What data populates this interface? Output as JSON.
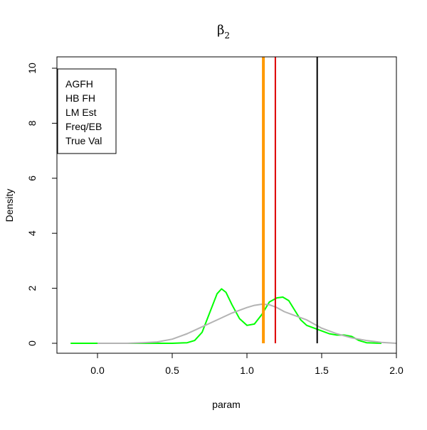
{
  "chart_data": {
    "type": "line",
    "title": "β",
    "title_subscript": "2",
    "xlabel": "param",
    "ylabel": "Density",
    "xlim": [
      -0.2,
      2.0
    ],
    "ylim": [
      -0.4,
      10.0
    ],
    "x_ticks": [
      0.0,
      0.5,
      1.0,
      1.5,
      2.0
    ],
    "x_tick_labels": [
      "0.0",
      "0.5",
      "1.0",
      "1.5",
      "2.0"
    ],
    "y_ticks": [
      0,
      2,
      4,
      6,
      8,
      10
    ],
    "y_tick_labels": [
      "0",
      "2",
      "4",
      "6",
      "8",
      "10"
    ],
    "grid": false,
    "legend": {
      "placement": "top-left",
      "entries": [
        "AGFH",
        "HB FH",
        "LM Est",
        "Freq/EB",
        "True Val"
      ]
    },
    "series": [
      {
        "name": "AGFH",
        "color": "#00ff00",
        "points": [
          [
            -0.18,
            0.0
          ],
          [
            0.0,
            0.0
          ],
          [
            0.2,
            0.0
          ],
          [
            0.4,
            0.0
          ],
          [
            0.5,
            0.0
          ],
          [
            0.6,
            0.02
          ],
          [
            0.65,
            0.1
          ],
          [
            0.7,
            0.4
          ],
          [
            0.75,
            1.1
          ],
          [
            0.8,
            1.8
          ],
          [
            0.83,
            1.98
          ],
          [
            0.86,
            1.85
          ],
          [
            0.9,
            1.4
          ],
          [
            0.95,
            0.9
          ],
          [
            1.0,
            0.65
          ],
          [
            1.05,
            0.7
          ],
          [
            1.1,
            1.05
          ],
          [
            1.15,
            1.5
          ],
          [
            1.2,
            1.65
          ],
          [
            1.24,
            1.68
          ],
          [
            1.28,
            1.55
          ],
          [
            1.32,
            1.2
          ],
          [
            1.36,
            0.85
          ],
          [
            1.4,
            0.65
          ],
          [
            1.45,
            0.55
          ],
          [
            1.5,
            0.45
          ],
          [
            1.55,
            0.35
          ],
          [
            1.6,
            0.3
          ],
          [
            1.65,
            0.3
          ],
          [
            1.7,
            0.25
          ],
          [
            1.75,
            0.1
          ],
          [
            1.8,
            0.02
          ],
          [
            1.9,
            0.0
          ]
        ]
      },
      {
        "name": "HB FH",
        "color": "#b3b3b3",
        "points": [
          [
            0.0,
            0.0
          ],
          [
            0.2,
            0.0
          ],
          [
            0.3,
            0.02
          ],
          [
            0.4,
            0.05
          ],
          [
            0.5,
            0.15
          ],
          [
            0.6,
            0.35
          ],
          [
            0.7,
            0.6
          ],
          [
            0.8,
            0.85
          ],
          [
            0.9,
            1.1
          ],
          [
            1.0,
            1.3
          ],
          [
            1.05,
            1.38
          ],
          [
            1.1,
            1.42
          ],
          [
            1.15,
            1.4
          ],
          [
            1.2,
            1.3
          ],
          [
            1.25,
            1.15
          ],
          [
            1.3,
            1.05
          ],
          [
            1.4,
            0.85
          ],
          [
            1.5,
            0.55
          ],
          [
            1.6,
            0.35
          ],
          [
            1.7,
            0.2
          ],
          [
            1.8,
            0.1
          ],
          [
            1.9,
            0.03
          ],
          [
            2.0,
            0.0
          ]
        ]
      }
    ],
    "vertical_lines": [
      {
        "name": "LM Est",
        "x": 1.11,
        "color": "#ff9900",
        "width": "thick"
      },
      {
        "name": "Freq/EB",
        "x": 1.19,
        "color": "#dd0000",
        "width": "normal"
      },
      {
        "name": "True Val",
        "x": 1.47,
        "color": "#000000",
        "width": "normal"
      }
    ]
  }
}
